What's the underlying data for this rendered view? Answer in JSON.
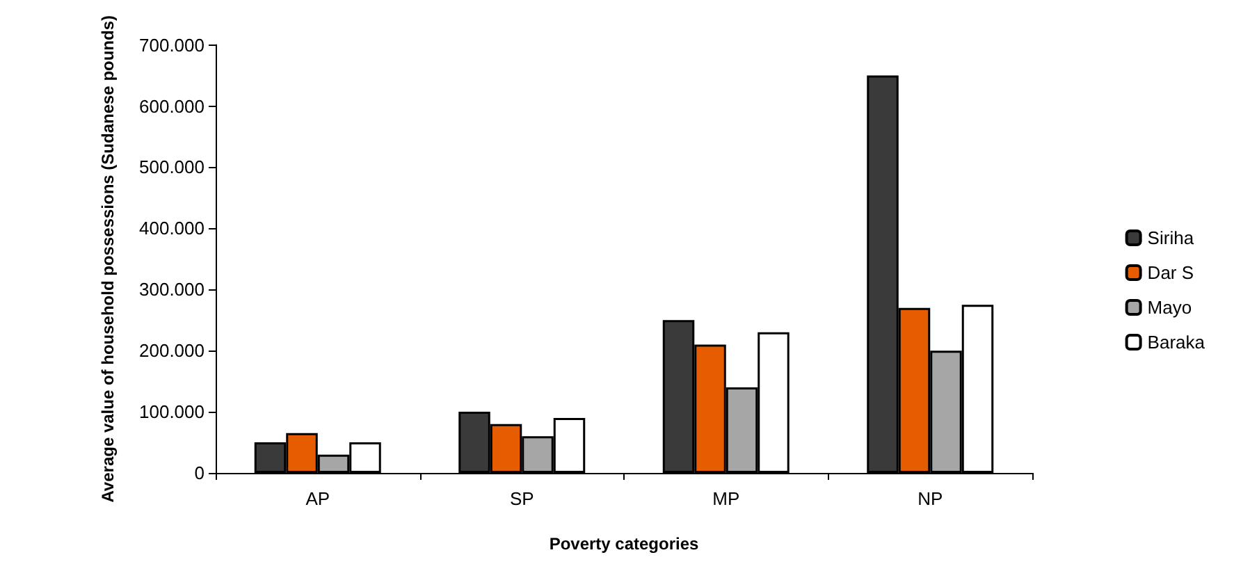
{
  "chart_data": {
    "type": "bar",
    "xlabel": "Poverty categories",
    "ylabel": "Average value of household possessions (Sudanese pounds)",
    "categories": [
      "AP",
      "SP",
      "MP",
      "NP"
    ],
    "series": [
      {
        "name": "Siriha",
        "color": "#3a3a3a",
        "values": [
          50000,
          100000,
          250000,
          650000
        ]
      },
      {
        "name": "Dar S",
        "color": "#e65c00",
        "values": [
          65000,
          80000,
          210000,
          270000
        ]
      },
      {
        "name": "Mayo",
        "color": "#a6a6a6",
        "values": [
          30000,
          60000,
          140000,
          200000
        ]
      },
      {
        "name": "Baraka",
        "color": "#ffffff",
        "values": [
          50000,
          90000,
          230000,
          275000
        ]
      }
    ],
    "ylim": [
      0,
      700000
    ],
    "yticks": [
      {
        "value": 0,
        "label": "0"
      },
      {
        "value": 100000,
        "label": "100.000"
      },
      {
        "value": 200000,
        "label": "200.000"
      },
      {
        "value": 300000,
        "label": "300.000"
      },
      {
        "value": 400000,
        "label": "400.000"
      },
      {
        "value": 500000,
        "label": "500.000"
      },
      {
        "value": 600000,
        "label": "600.000"
      },
      {
        "value": 700000,
        "label": "700.000"
      }
    ],
    "grid": false,
    "legend": "right"
  }
}
